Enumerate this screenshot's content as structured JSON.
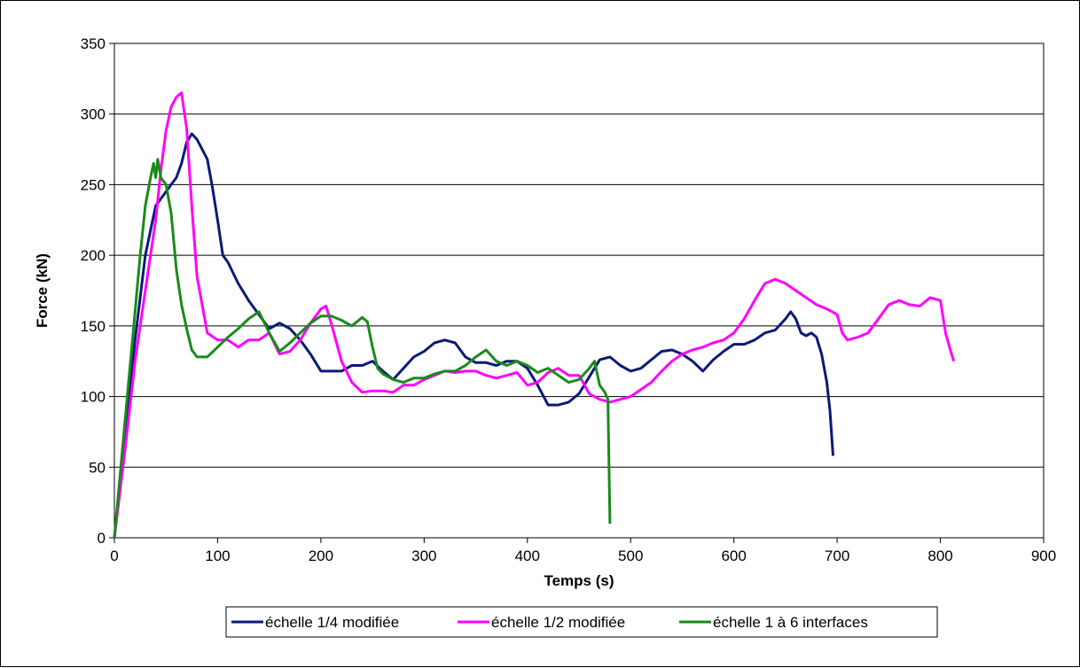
{
  "chart_data": {
    "type": "line",
    "title": "",
    "xlabel": "Temps (s)",
    "ylabel": "Force (kN)",
    "xlim": [
      0,
      900
    ],
    "ylim": [
      0,
      350
    ],
    "x_ticks": [
      0,
      100,
      200,
      300,
      400,
      500,
      600,
      700,
      800,
      900
    ],
    "y_ticks": [
      0,
      50,
      100,
      150,
      200,
      250,
      300,
      350
    ],
    "grid": "horizontal",
    "legend_position": "bottom",
    "series": [
      {
        "name": "échelle 1/4 modifiée",
        "color": "#0a1a78",
        "points": [
          [
            0,
            0
          ],
          [
            10,
            70
          ],
          [
            20,
            140
          ],
          [
            30,
            200
          ],
          [
            40,
            235
          ],
          [
            50,
            245
          ],
          [
            55,
            250
          ],
          [
            60,
            255
          ],
          [
            65,
            265
          ],
          [
            70,
            280
          ],
          [
            75,
            286
          ],
          [
            80,
            282
          ],
          [
            85,
            275
          ],
          [
            90,
            268
          ],
          [
            95,
            248
          ],
          [
            100,
            225
          ],
          [
            105,
            200
          ],
          [
            110,
            195
          ],
          [
            120,
            180
          ],
          [
            130,
            168
          ],
          [
            140,
            158
          ],
          [
            150,
            148
          ],
          [
            160,
            152
          ],
          [
            170,
            148
          ],
          [
            180,
            140
          ],
          [
            190,
            130
          ],
          [
            200,
            118
          ],
          [
            210,
            118
          ],
          [
            220,
            118
          ],
          [
            230,
            122
          ],
          [
            240,
            122
          ],
          [
            250,
            125
          ],
          [
            260,
            118
          ],
          [
            270,
            112
          ],
          [
            280,
            120
          ],
          [
            290,
            128
          ],
          [
            300,
            132
          ],
          [
            310,
            138
          ],
          [
            320,
            140
          ],
          [
            330,
            138
          ],
          [
            340,
            128
          ],
          [
            350,
            124
          ],
          [
            360,
            124
          ],
          [
            370,
            122
          ],
          [
            380,
            125
          ],
          [
            390,
            125
          ],
          [
            400,
            120
          ],
          [
            410,
            108
          ],
          [
            420,
            94
          ],
          [
            430,
            94
          ],
          [
            440,
            96
          ],
          [
            450,
            102
          ],
          [
            460,
            114
          ],
          [
            470,
            126
          ],
          [
            480,
            128
          ],
          [
            490,
            122
          ],
          [
            500,
            118
          ],
          [
            510,
            120
          ],
          [
            520,
            126
          ],
          [
            530,
            132
          ],
          [
            540,
            133
          ],
          [
            550,
            130
          ],
          [
            560,
            125
          ],
          [
            570,
            118
          ],
          [
            580,
            126
          ],
          [
            590,
            132
          ],
          [
            600,
            137
          ],
          [
            610,
            137
          ],
          [
            620,
            140
          ],
          [
            630,
            145
          ],
          [
            640,
            147
          ],
          [
            650,
            155
          ],
          [
            655,
            160
          ],
          [
            660,
            155
          ],
          [
            665,
            145
          ],
          [
            670,
            143
          ],
          [
            675,
            145
          ],
          [
            680,
            142
          ],
          [
            685,
            130
          ],
          [
            690,
            110
          ],
          [
            693,
            90
          ],
          [
            696,
            58
          ]
        ]
      },
      {
        "name": "échelle 1/2 modifiée",
        "color": "#ff00ff",
        "points": [
          [
            0,
            0
          ],
          [
            10,
            60
          ],
          [
            20,
            125
          ],
          [
            30,
            175
          ],
          [
            40,
            225
          ],
          [
            45,
            260
          ],
          [
            50,
            288
          ],
          [
            55,
            305
          ],
          [
            60,
            312
          ],
          [
            65,
            315
          ],
          [
            70,
            290
          ],
          [
            75,
            235
          ],
          [
            80,
            185
          ],
          [
            85,
            165
          ],
          [
            90,
            145
          ],
          [
            100,
            140
          ],
          [
            110,
            140
          ],
          [
            120,
            135
          ],
          [
            130,
            140
          ],
          [
            140,
            140
          ],
          [
            150,
            145
          ],
          [
            160,
            130
          ],
          [
            170,
            132
          ],
          [
            180,
            140
          ],
          [
            190,
            152
          ],
          [
            200,
            162
          ],
          [
            205,
            164
          ],
          [
            210,
            152
          ],
          [
            220,
            125
          ],
          [
            230,
            110
          ],
          [
            240,
            103
          ],
          [
            250,
            104
          ],
          [
            260,
            104
          ],
          [
            270,
            103
          ],
          [
            280,
            108
          ],
          [
            290,
            108
          ],
          [
            300,
            112
          ],
          [
            310,
            115
          ],
          [
            320,
            118
          ],
          [
            330,
            117
          ],
          [
            340,
            118
          ],
          [
            350,
            118
          ],
          [
            360,
            115
          ],
          [
            370,
            113
          ],
          [
            380,
            115
          ],
          [
            390,
            117
          ],
          [
            400,
            108
          ],
          [
            410,
            110
          ],
          [
            420,
            117
          ],
          [
            430,
            120
          ],
          [
            440,
            115
          ],
          [
            450,
            115
          ],
          [
            460,
            102
          ],
          [
            470,
            98
          ],
          [
            480,
            96
          ],
          [
            490,
            98
          ],
          [
            500,
            100
          ],
          [
            510,
            105
          ],
          [
            520,
            110
          ],
          [
            530,
            118
          ],
          [
            540,
            125
          ],
          [
            550,
            130
          ],
          [
            560,
            133
          ],
          [
            570,
            135
          ],
          [
            580,
            138
          ],
          [
            590,
            140
          ],
          [
            600,
            145
          ],
          [
            610,
            155
          ],
          [
            620,
            168
          ],
          [
            630,
            180
          ],
          [
            640,
            183
          ],
          [
            650,
            180
          ],
          [
            660,
            175
          ],
          [
            670,
            170
          ],
          [
            680,
            165
          ],
          [
            690,
            162
          ],
          [
            700,
            158
          ],
          [
            705,
            145
          ],
          [
            710,
            140
          ],
          [
            720,
            142
          ],
          [
            730,
            145
          ],
          [
            740,
            155
          ],
          [
            750,
            165
          ],
          [
            760,
            168
          ],
          [
            770,
            165
          ],
          [
            780,
            164
          ],
          [
            790,
            170
          ],
          [
            800,
            168
          ],
          [
            805,
            145
          ],
          [
            810,
            132
          ],
          [
            813,
            125
          ]
        ]
      },
      {
        "name": "échelle 1 à 6 interfaces",
        "color": "#1a8a1a",
        "points": [
          [
            0,
            0
          ],
          [
            10,
            80
          ],
          [
            20,
            160
          ],
          [
            25,
            200
          ],
          [
            30,
            235
          ],
          [
            35,
            255
          ],
          [
            38,
            265
          ],
          [
            40,
            255
          ],
          [
            42,
            268
          ],
          [
            45,
            255
          ],
          [
            50,
            250
          ],
          [
            55,
            230
          ],
          [
            60,
            190
          ],
          [
            65,
            165
          ],
          [
            70,
            148
          ],
          [
            75,
            133
          ],
          [
            80,
            128
          ],
          [
            90,
            128
          ],
          [
            100,
            135
          ],
          [
            110,
            142
          ],
          [
            120,
            148
          ],
          [
            130,
            155
          ],
          [
            140,
            160
          ],
          [
            150,
            145
          ],
          [
            160,
            132
          ],
          [
            170,
            138
          ],
          [
            180,
            145
          ],
          [
            190,
            152
          ],
          [
            200,
            157
          ],
          [
            210,
            157
          ],
          [
            220,
            154
          ],
          [
            230,
            150
          ],
          [
            240,
            156
          ],
          [
            245,
            153
          ],
          [
            250,
            135
          ],
          [
            255,
            120
          ],
          [
            260,
            116
          ],
          [
            270,
            112
          ],
          [
            280,
            110
          ],
          [
            290,
            113
          ],
          [
            300,
            113
          ],
          [
            310,
            116
          ],
          [
            320,
            118
          ],
          [
            330,
            118
          ],
          [
            340,
            122
          ],
          [
            350,
            128
          ],
          [
            360,
            133
          ],
          [
            370,
            125
          ],
          [
            380,
            122
          ],
          [
            390,
            125
          ],
          [
            400,
            122
          ],
          [
            410,
            117
          ],
          [
            420,
            120
          ],
          [
            430,
            115
          ],
          [
            440,
            110
          ],
          [
            450,
            112
          ],
          [
            460,
            120
          ],
          [
            465,
            125
          ],
          [
            470,
            108
          ],
          [
            475,
            103
          ],
          [
            478,
            98
          ],
          [
            480,
            10
          ]
        ]
      }
    ]
  }
}
